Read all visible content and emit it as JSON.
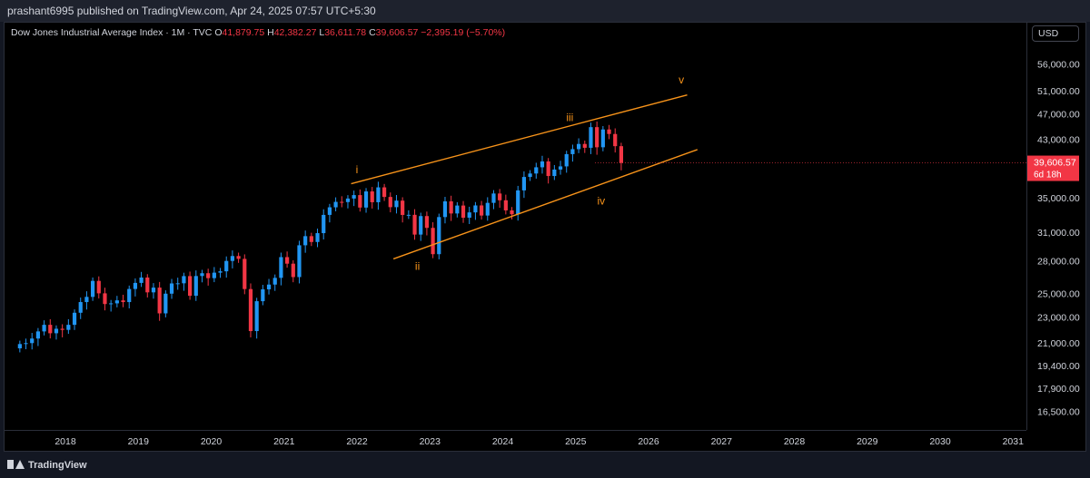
{
  "publisher": "prashant6995 published on TradingView.com, Apr 24, 2025 07:57 UTC+5:30",
  "legend": {
    "symbol": "Dow Jones Industrial Average Index · 1M · TVC",
    "o_label": "O",
    "o_value": "41,879.75",
    "h_label": "H",
    "h_value": "42,382.27",
    "l_label": "L",
    "l_value": "36,611.78",
    "c_label": "C",
    "c_value": "39,606.57",
    "change": "−2,395.19 (−5.70%)"
  },
  "currency_button": "USD",
  "price_tag": {
    "price": "39,606.57",
    "countdown": "6d 18h",
    "color": "#f23645"
  },
  "footer": {
    "brand": "TradingView"
  },
  "colors": {
    "up": "#2196f3",
    "down": "#f23645",
    "channel": "#f7931a",
    "wave_label": "#f7931a",
    "background": "#000000"
  },
  "chart_data": {
    "type": "candlestick",
    "scale": "log",
    "x_ticks": [
      "2018",
      "2019",
      "2020",
      "2021",
      "2022",
      "2023",
      "2024",
      "2025",
      "2026",
      "2027",
      "2028",
      "2029",
      "2030",
      "2031"
    ],
    "y_ticks": [
      56000,
      51000,
      47000,
      43000,
      35000,
      31000,
      28000,
      25000,
      23000,
      21000,
      19400,
      17900,
      16500
    ],
    "y_tick_labels": [
      "56,000.00",
      "51,000.00",
      "47,000.00",
      "43,000.00",
      "35,000.00",
      "31,000.00",
      "28,000.00",
      "25,000.00",
      "23,000.00",
      "21,000.00",
      "19,400.00",
      "17,900.00",
      "16,500.00"
    ],
    "ylim": [
      15500,
      63000
    ],
    "xlim": [
      2017.33,
      2031.4
    ],
    "closes": [
      20940,
      21009,
      21350,
      21891,
      22405,
      21751,
      22096,
      22011,
      22405,
      23377,
      24272,
      24719,
      26149,
      25029,
      24103,
      24163,
      24416,
      24271,
      25415,
      25965,
      26458,
      25116,
      25538,
      23327,
      24999,
      25916,
      25929,
      26593,
      24815,
      26600,
      26864,
      26403,
      26917,
      27046,
      28051,
      28538,
      28256,
      25409,
      21917,
      24346,
      25383,
      25813,
      26428,
      28430,
      27782,
      26502,
      29639,
      30606,
      29983,
      30932,
      32982,
      33875,
      34529,
      34503,
      34935,
      35361,
      33844,
      35820,
      34484,
      36338,
      35132,
      33893,
      34678,
      32977,
      32990,
      30775,
      32845,
      31510,
      28726,
      32733,
      34590,
      33147,
      34086,
      32657,
      33274,
      34098,
      32908,
      34408,
      35560,
      34722,
      33508,
      33053,
      35951,
      37690,
      38150,
      38996,
      39807,
      37816,
      38686,
      39119,
      40842,
      41563,
      42330,
      41763,
      44911,
      41840,
      44545,
      43841,
      42002,
      39606
    ],
    "wave_labels": [
      {
        "text": "i",
        "x": 2022.0,
        "y": 38200
      },
      {
        "text": "ii",
        "x": 2022.83,
        "y": 27200
      },
      {
        "text": "iii",
        "x": 2024.92,
        "y": 45900
      },
      {
        "text": "iv",
        "x": 2025.35,
        "y": 34200
      },
      {
        "text": "v",
        "x": 2026.45,
        "y": 52400
      }
    ],
    "channel_lines": [
      {
        "name": "upper",
        "x1": 2021.92,
        "y1": 36800,
        "x2": 2026.53,
        "y2": 50300
      },
      {
        "name": "lower",
        "x1": 2022.5,
        "y1": 28250,
        "x2": 2026.67,
        "y2": 41500
      }
    ]
  }
}
